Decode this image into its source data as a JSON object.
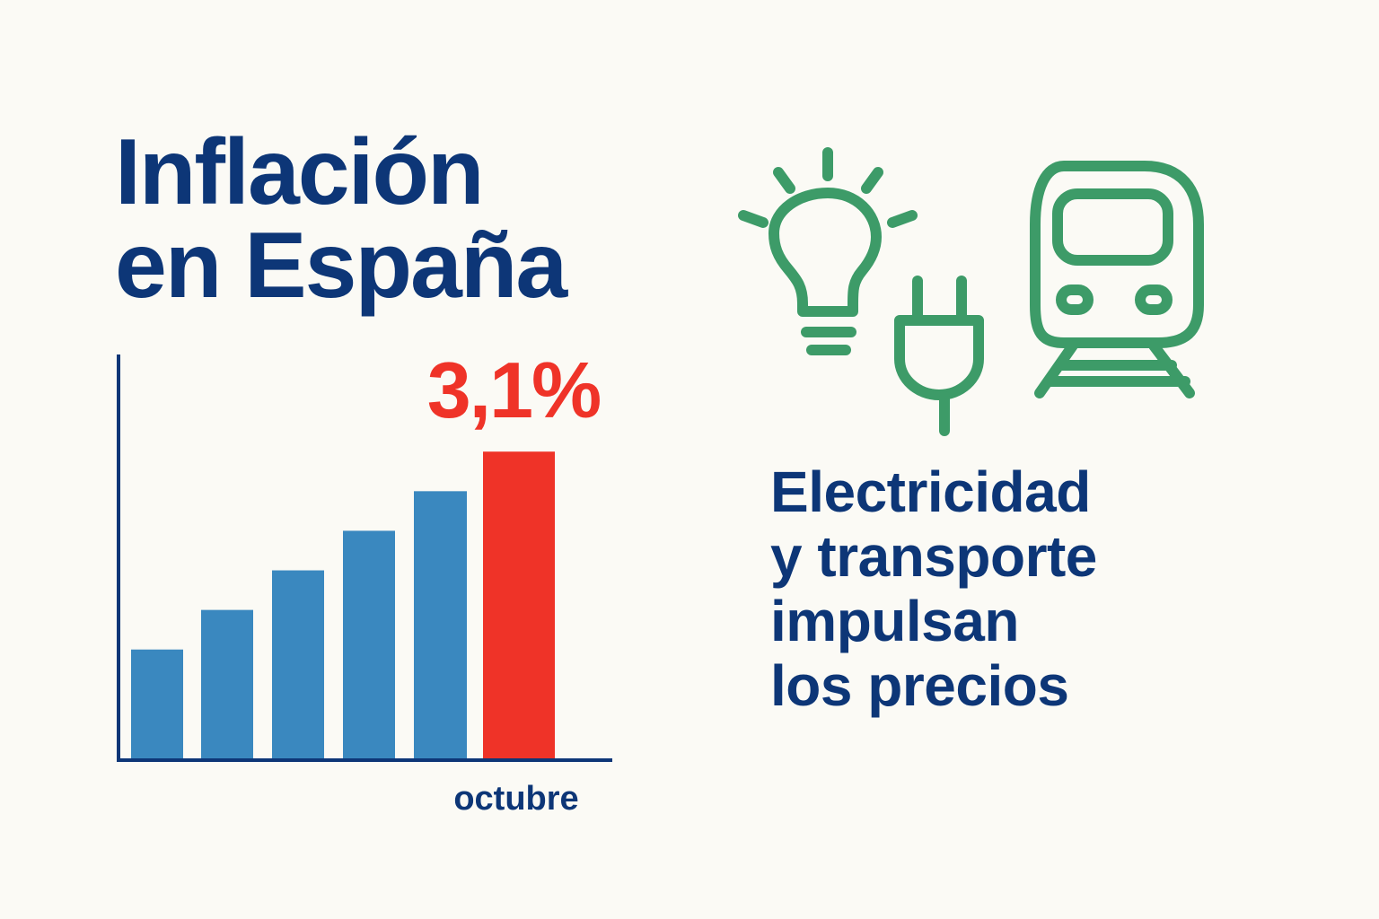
{
  "title": {
    "line1": "Inflación",
    "line2": "en España"
  },
  "subtitle": {
    "line1": "Electricidad",
    "line2": "y transporte",
    "line3": "impulsan",
    "line4": "los precios"
  },
  "icons": [
    "lightbulb-icon",
    "plug-icon",
    "train-icon"
  ],
  "colors": {
    "navy": "#0d3677",
    "bar": "#3a88bf",
    "highlight": "#ef3328",
    "icon": "#3d9b68",
    "background": "#fbfaf5"
  },
  "chart_data": {
    "type": "bar",
    "categories": [
      "",
      "",
      "",
      "",
      "",
      "octubre"
    ],
    "values": [
      1.1,
      1.5,
      1.9,
      2.3,
      2.7,
      3.1
    ],
    "highlight_index": 5,
    "highlight_label": "3,1%",
    "xlabel": "",
    "ylabel": "",
    "ylim": [
      0,
      4
    ],
    "grid": false
  }
}
